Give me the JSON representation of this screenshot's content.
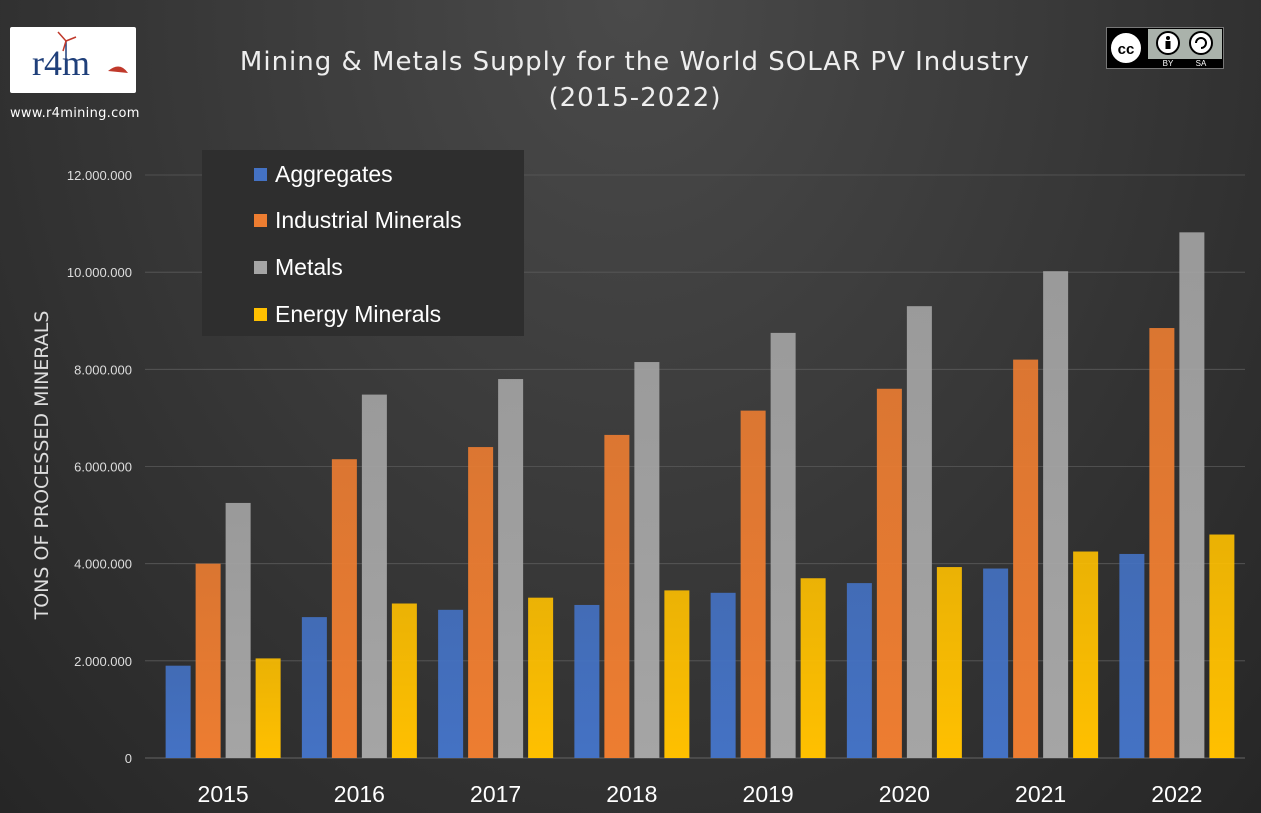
{
  "header": {
    "title_line1": "Mining & Metals Supply for the World SOLAR PV Industry",
    "title_line2": "(2015-2022)",
    "website": "www.r4mining.com",
    "logo_text": "r4m",
    "license": {
      "by": "BY",
      "sa": "SA"
    }
  },
  "colors": {
    "aggregates": "#4472c4",
    "industrial_minerals": "#ed7d31",
    "metals": "#a5a5a5",
    "energy_minerals": "#ffc000",
    "grid": "#5a5a5a"
  },
  "chart_data": {
    "type": "bar",
    "title": "Mining & Metals Supply for the World SOLAR PV Industry (2015-2022)",
    "xlabel": "",
    "ylabel": "TONS OF PROCESSED MINERALS",
    "ylim": [
      0,
      12000000
    ],
    "yticks": [
      0,
      2000000,
      4000000,
      6000000,
      8000000,
      10000000,
      12000000
    ],
    "ytick_labels": [
      "0",
      "2.000.000",
      "4.000.000",
      "6.000.000",
      "8.000.000",
      "10.000.000",
      "12.000.000"
    ],
    "grid": true,
    "legend_position": "top-left",
    "categories": [
      "2015",
      "2016",
      "2017",
      "2018",
      "2019",
      "2020",
      "2021",
      "2022"
    ],
    "series": [
      {
        "name": "Aggregates",
        "values": [
          1900000,
          2900000,
          3050000,
          3150000,
          3400000,
          3600000,
          3900000,
          4200000
        ]
      },
      {
        "name": "Industrial Minerals",
        "values": [
          4000000,
          6150000,
          6400000,
          6650000,
          7150000,
          7600000,
          8200000,
          8850000
        ]
      },
      {
        "name": "Metals",
        "values": [
          5250000,
          7480000,
          7800000,
          8150000,
          8750000,
          9300000,
          10020000,
          10820000
        ]
      },
      {
        "name": "Energy Minerals",
        "values": [
          2050000,
          3180000,
          3300000,
          3450000,
          3700000,
          3930000,
          4250000,
          4600000
        ]
      }
    ]
  }
}
